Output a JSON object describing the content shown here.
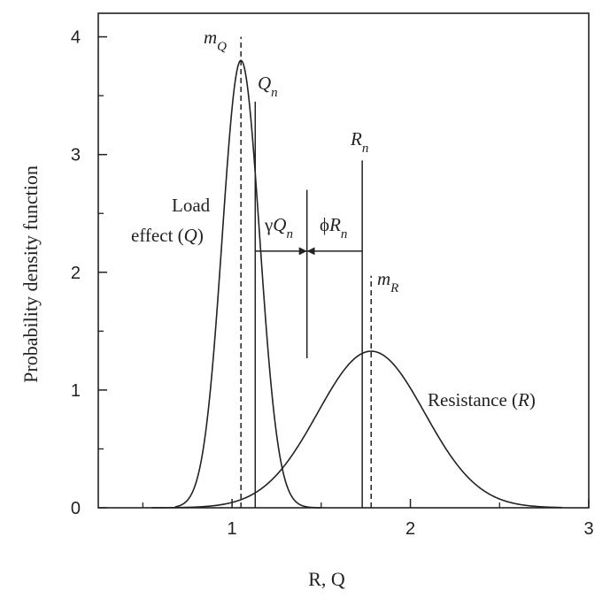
{
  "chart_data": {
    "type": "line",
    "xlabel": "R, Q",
    "ylabel": "Probability density function",
    "xlim": [
      0.25,
      3.0
    ],
    "ylim": [
      0,
      4.2
    ],
    "x_ticks": [
      1,
      2,
      3
    ],
    "x_minor_ticks": [
      0.5,
      1.5,
      2.5
    ],
    "y_ticks": [
      0,
      1,
      2,
      3,
      4
    ],
    "y_minor_ticks": [
      0.5,
      1.5,
      2.5,
      3.5
    ],
    "grid": false,
    "legend": "none",
    "series": [
      {
        "key": "load",
        "line1": "Load",
        "line2": "effect (",
        "var": "Q",
        "close": ")",
        "mean": 1.05,
        "sd": 0.105,
        "xrange": [
          0.68,
          1.5
        ]
      },
      {
        "key": "resistance",
        "prefix": "Resistance (",
        "var": "R",
        "close": ")",
        "mean": 1.78,
        "sd": 0.3,
        "xrange": [
          0.55,
          2.85
        ]
      }
    ],
    "markers": [
      {
        "key": "mQ",
        "x": 1.05,
        "top": 4.0,
        "style": "dashed",
        "var": "m",
        "sub": "Q"
      },
      {
        "key": "Qn",
        "x": 1.13,
        "top": 3.45,
        "style": "solid",
        "var": "Q",
        "sub": "n"
      },
      {
        "key": "Rn",
        "x": 1.73,
        "top": 2.95,
        "style": "solid",
        "var": "R",
        "sub": "n"
      },
      {
        "key": "mR",
        "x": 1.78,
        "top": 1.97,
        "style": "dashed",
        "var": "m",
        "sub": "R"
      }
    ],
    "factored_divider": {
      "x": 1.42,
      "y_from": 1.27,
      "y_to": 2.7
    },
    "factored_arrows": {
      "y": 2.18,
      "left_x": 1.13,
      "right_x": 1.73
    },
    "factored_labels": {
      "gamma": {
        "sym": "γ",
        "var": "Q",
        "sub": "n"
      },
      "phi": {
        "sym": "ϕ",
        "var": "R",
        "sub": "n"
      }
    }
  }
}
